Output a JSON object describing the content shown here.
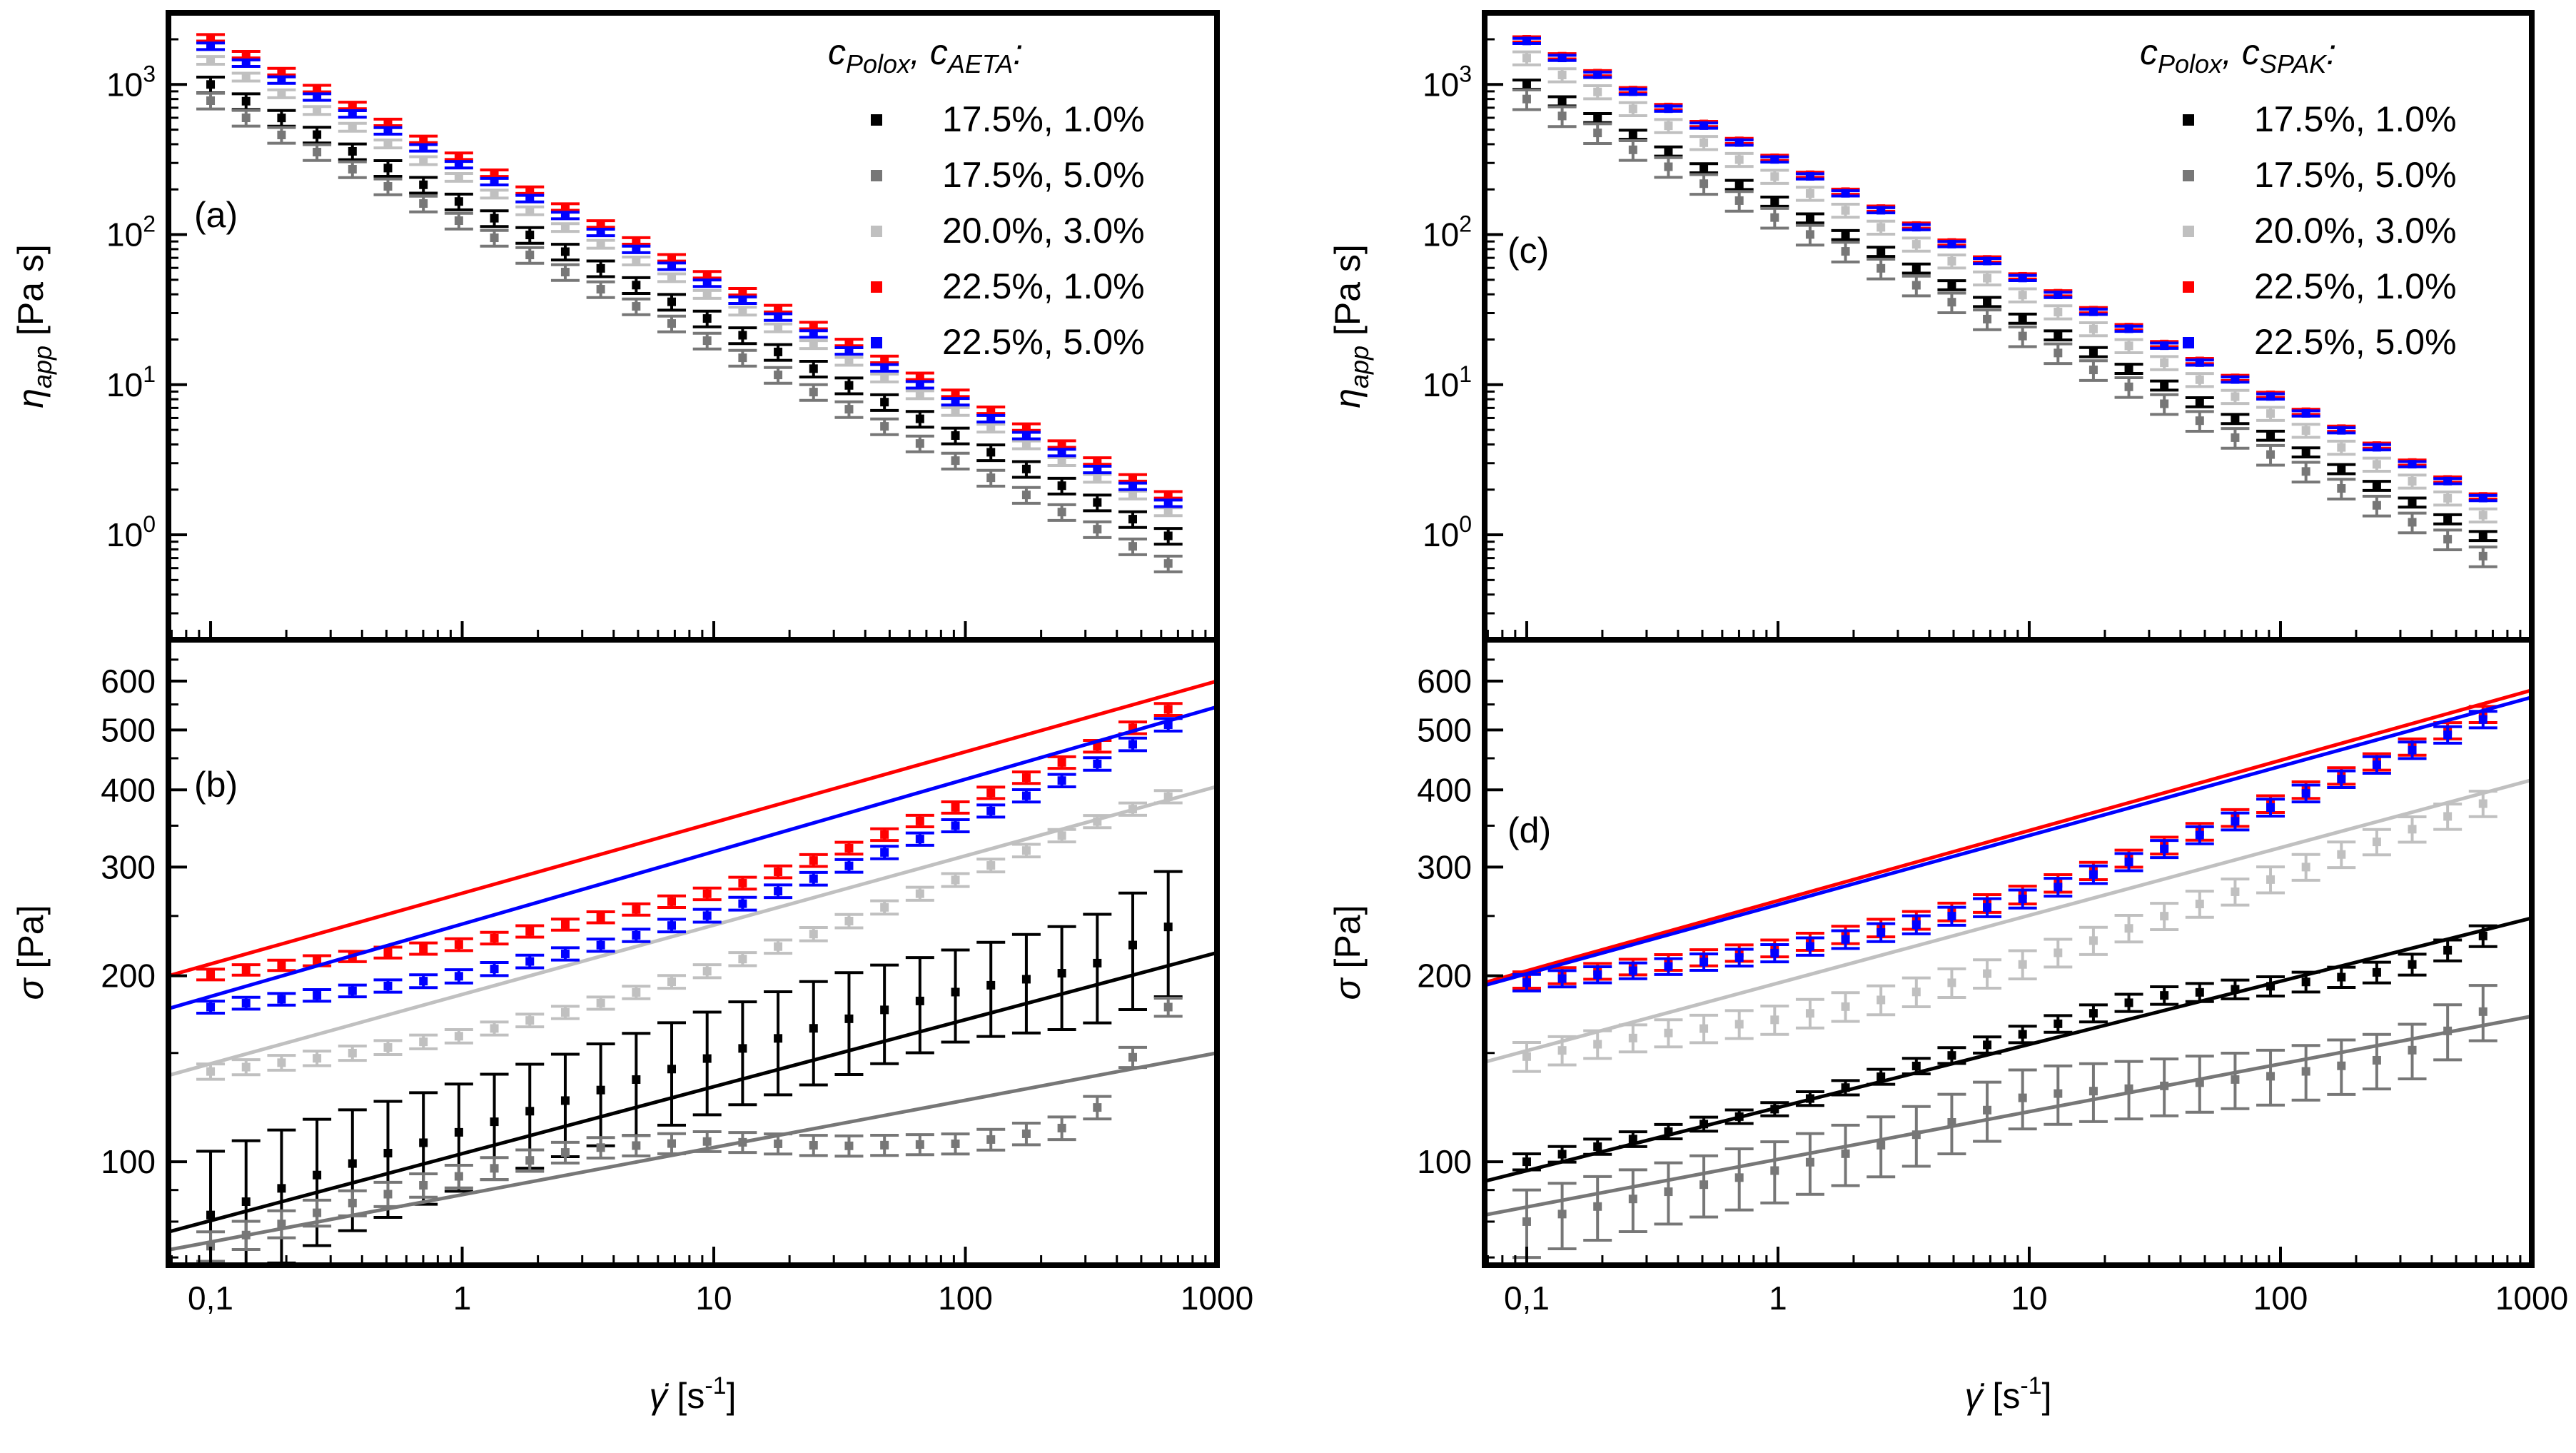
{
  "figure": {
    "x_axis_label": "γ̇ [s⁻¹]",
    "x_ticks": [
      "0,1",
      "1",
      "10",
      "100",
      "1000"
    ]
  },
  "chart_data": [
    {
      "panel": "(a)",
      "type": "scatter",
      "scale": "log-log",
      "ylabel": "η_app [Pa s]",
      "y_ticks": [
        "10^0",
        "10^1",
        "10^2",
        "10^3"
      ],
      "xlim": [
        0.068,
        1000
      ],
      "ylim": [
        0.2,
        3000
      ],
      "legend_title": "c_Polox, c_AETA:",
      "legend_position": "top-right",
      "error_bars": true,
      "series": [
        {
          "name": "17.5%, 1.0%",
          "color": "#000000",
          "viscosity_at_0.1": 1000,
          "exponent": -0.79,
          "error_frac": 0.12
        },
        {
          "name": "17.5%, 5.0%",
          "color": "#777777",
          "viscosity_at_0.1": 780,
          "exponent": -0.81,
          "error_frac": 0.12
        },
        {
          "name": "20.0%, 3.0%",
          "color": "#c0c0c0",
          "viscosity_at_0.1": 1450,
          "exponent": -0.79,
          "error_frac": 0.06
        },
        {
          "name": "22.5%, 1.0%",
          "color": "#ff0000",
          "viscosity_at_0.1": 2050,
          "exponent": -0.8,
          "error_frac": 0.05
        },
        {
          "name": "22.5%, 5.0%",
          "color": "#0000ff",
          "viscosity_at_0.1": 1800,
          "exponent": -0.8,
          "error_frac": 0.05
        }
      ]
    },
    {
      "panel": "(b)",
      "type": "scatter",
      "scale": "log-log",
      "ylabel": "σ [Pa]",
      "y_ticks": [
        "100",
        "200",
        "300",
        "400",
        "500",
        "600"
      ],
      "xlim": [
        0.068,
        1000
      ],
      "ylim": [
        68,
        700
      ],
      "error_bars": true,
      "fit_lines": true,
      "series": [
        {
          "name": "17.5%, 1.0%",
          "color": "#000000",
          "x": [
            0.1,
            0.3,
            1,
            3,
            10,
            30,
            100,
            300,
            640
          ],
          "y": [
            82,
            97,
            112,
            128,
            148,
            168,
            190,
            205,
            240
          ],
          "error": [
            22,
            22,
            22,
            24,
            28,
            32,
            32,
            40,
            55
          ],
          "fit": {
            "x0": 0.068,
            "y0": 77,
            "x1": 1000,
            "y1": 218
          }
        },
        {
          "name": "17.5%, 5.0%",
          "color": "#777777",
          "x": [
            0.1,
            0.3,
            1,
            3,
            10,
            30,
            100,
            300,
            640
          ],
          "y": [
            73,
            84,
            95,
            105,
            108,
            106,
            107,
            115,
            178
          ],
          "error": [
            4,
            4,
            4,
            4,
            4,
            4,
            4,
            5,
            6
          ],
          "fit": {
            "x0": 0.068,
            "y0": 72,
            "x1": 1000,
            "y1": 150
          }
        },
        {
          "name": "20.0%, 3.0%",
          "color": "#c0c0c0",
          "x": [
            0.1,
            0.3,
            1,
            3,
            10,
            30,
            100,
            300,
            640
          ],
          "y": [
            140,
            148,
            160,
            177,
            205,
            240,
            290,
            350,
            390
          ],
          "error": [
            4,
            4,
            4,
            4,
            5,
            6,
            7,
            8,
            9
          ],
          "fit": {
            "x0": 0.068,
            "y0": 138,
            "x1": 1000,
            "y1": 405
          }
        },
        {
          "name": "22.5%, 1.0%",
          "color": "#ff0000",
          "x": [
            0.1,
            0.3,
            1,
            3,
            10,
            30,
            100,
            300,
            640
          ],
          "y": [
            201,
            213,
            225,
            245,
            273,
            315,
            380,
            460,
            540
          ],
          "error": [
            4,
            4,
            5,
            5,
            6,
            7,
            8,
            10,
            12
          ],
          "fit": {
            "x0": 0.068,
            "y0": 200,
            "x1": 1000,
            "y1": 600
          }
        },
        {
          "name": "22.5%, 5.0%",
          "color": "#0000ff",
          "x": [
            0.1,
            0.3,
            1,
            3,
            10,
            30,
            100,
            300,
            640
          ],
          "y": [
            178,
            187,
            200,
            220,
            252,
            295,
            355,
            430,
            510
          ],
          "error": [
            4,
            4,
            5,
            5,
            6,
            7,
            8,
            10,
            12
          ],
          "fit": {
            "x0": 0.068,
            "y0": 177,
            "x1": 1000,
            "y1": 545
          }
        }
      ]
    },
    {
      "panel": "(c)",
      "type": "scatter",
      "scale": "log-log",
      "ylabel": "η_app [Pa s]",
      "y_ticks": [
        "10^0",
        "10^1",
        "10^2",
        "10^3"
      ],
      "xlim": [
        0.068,
        1000
      ],
      "ylim": [
        0.2,
        3000
      ],
      "legend_title": "c_Polox, c_SPAK:",
      "legend_position": "top-right",
      "error_bars": true,
      "series": [
        {
          "name": "17.5%, 1.0%",
          "color": "#000000",
          "viscosity_at_0.1": 1000,
          "exponent": -0.79,
          "error_frac": 0.07
        },
        {
          "name": "17.5%, 5.0%",
          "color": "#777777",
          "viscosity_at_0.1": 800,
          "exponent": -0.8,
          "error_frac": 0.15
        },
        {
          "name": "20.0%, 3.0%",
          "color": "#c0c0c0",
          "viscosity_at_0.1": 1500,
          "exponent": -0.8,
          "error_frac": 0.1
        },
        {
          "name": "22.5%, 1.0%",
          "color": "#ff0000",
          "viscosity_at_0.1": 2000,
          "exponent": -0.8,
          "error_frac": 0.04
        },
        {
          "name": "22.5%, 5.0%",
          "color": "#0000ff",
          "viscosity_at_0.1": 1950,
          "exponent": -0.8,
          "error_frac": 0.04
        }
      ]
    },
    {
      "panel": "(d)",
      "type": "scatter",
      "scale": "log-log",
      "ylabel": "σ [Pa]",
      "y_ticks": [
        "100",
        "200",
        "300",
        "400",
        "500",
        "600"
      ],
      "xlim": [
        0.068,
        1000
      ],
      "ylim": [
        68,
        700
      ],
      "error_bars": true,
      "fit_lines": true,
      "series": [
        {
          "name": "17.5%, 1.0%",
          "color": "#000000",
          "x": [
            0.1,
            0.3,
            1,
            3,
            10,
            30,
            100,
            300,
            640
          ],
          "y": [
            100,
            110,
            122,
            140,
            162,
            185,
            193,
            205,
            232
          ],
          "error": [
            3,
            3,
            3,
            4,
            5,
            6,
            7,
            8,
            9
          ],
          "fit": {
            "x0": 0.068,
            "y0": 93,
            "x1": 1000,
            "y1": 248
          }
        },
        {
          "name": "17.5%, 5.0%",
          "color": "#777777",
          "x": [
            0.1,
            0.3,
            1,
            3,
            10,
            30,
            100,
            300,
            640
          ],
          "y": [
            80,
            88,
            97,
            108,
            128,
            132,
            138,
            148,
            175
          ],
          "error": [
            10,
            10,
            11,
            12,
            14,
            14,
            14,
            15,
            18
          ],
          "fit": {
            "x0": 0.068,
            "y0": 82,
            "x1": 1000,
            "y1": 172
          }
        },
        {
          "name": "20.0%, 3.0%",
          "color": "#c0c0c0",
          "x": [
            0.1,
            0.3,
            1,
            3,
            10,
            30,
            100,
            300,
            640
          ],
          "y": [
            148,
            160,
            170,
            185,
            210,
            245,
            290,
            340,
            380
          ],
          "error": [
            8,
            8,
            9,
            10,
            11,
            12,
            14,
            16,
            18
          ],
          "fit": {
            "x0": 0.068,
            "y0": 145,
            "x1": 1000,
            "y1": 415
          }
        },
        {
          "name": "22.5%, 1.0%",
          "color": "#ff0000",
          "x": [
            0.1,
            0.3,
            1,
            3,
            10,
            30,
            100,
            300,
            640
          ],
          "y": [
            197,
            208,
            222,
            242,
            272,
            318,
            385,
            460,
            530
          ],
          "error": [
            6,
            6,
            7,
            8,
            9,
            10,
            12,
            14,
            16
          ],
          "fit": {
            "x0": 0.068,
            "y0": 195,
            "x1": 1000,
            "y1": 580
          }
        },
        {
          "name": "22.5%, 5.0%",
          "color": "#0000ff",
          "x": [
            0.1,
            0.3,
            1,
            3,
            10,
            30,
            100,
            300,
            640
          ],
          "y": [
            195,
            205,
            218,
            238,
            268,
            314,
            380,
            455,
            520
          ],
          "error": [
            6,
            6,
            7,
            8,
            9,
            10,
            12,
            14,
            16
          ],
          "fit": {
            "x0": 0.068,
            "y0": 193,
            "x1": 1000,
            "y1": 565
          }
        }
      ]
    }
  ]
}
